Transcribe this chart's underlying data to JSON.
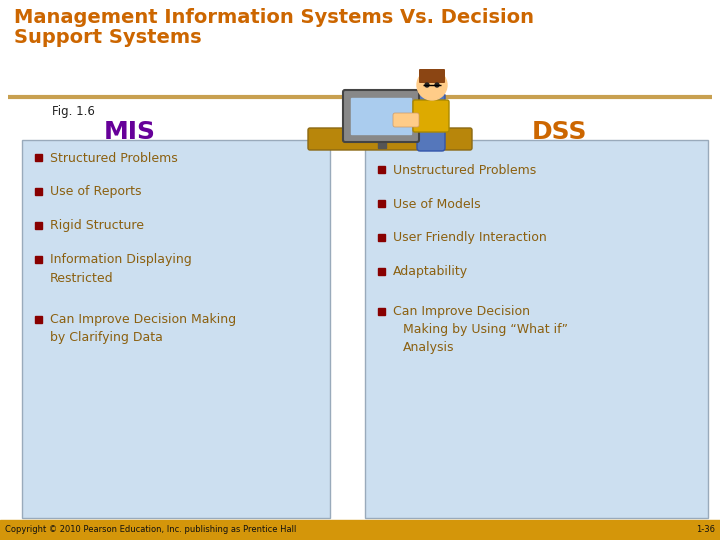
{
  "title_line1": "Management Information Systems Vs. Decision",
  "title_line2": "Support Systems",
  "title_color": "#CC6600",
  "separator_color": "#C8A050",
  "fig_label": "Fig. 1.6",
  "mis_label": "MIS",
  "dss_label": "DSS",
  "mis_color": "#660099",
  "dss_color": "#CC6600",
  "box_bg": "#CCDFF0",
  "box_border": "#99AABB",
  "bullet_color": "#880000",
  "text_color": "#8B6010",
  "mis_bullets": [
    "Structured Problems",
    "Use of Reports",
    "Rigid Structure",
    "Information Displaying",
    "  Restricted",
    "Can Improve Decision Making",
    "  by Clarifying Data"
  ],
  "mis_bullet_flags": [
    true,
    true,
    true,
    true,
    false,
    true,
    false
  ],
  "dss_bullets": [
    "Unstructured Problems",
    "Use of Models",
    "User Friendly Interaction",
    "Adaptability"
  ],
  "dss_extra_bullet": "Can Improve Decision",
  "dss_extra_lines": [
    "  Making by Using “What if”",
    "  Analysis"
  ],
  "footer_left": "Copyright © 2010 Pearson Education, Inc. publishing as Prentice Hall",
  "footer_right": "1-36",
  "footer_bg": "#D4960A",
  "bg_color": "#FFFFFF",
  "title_bg": "#FFFFFF"
}
